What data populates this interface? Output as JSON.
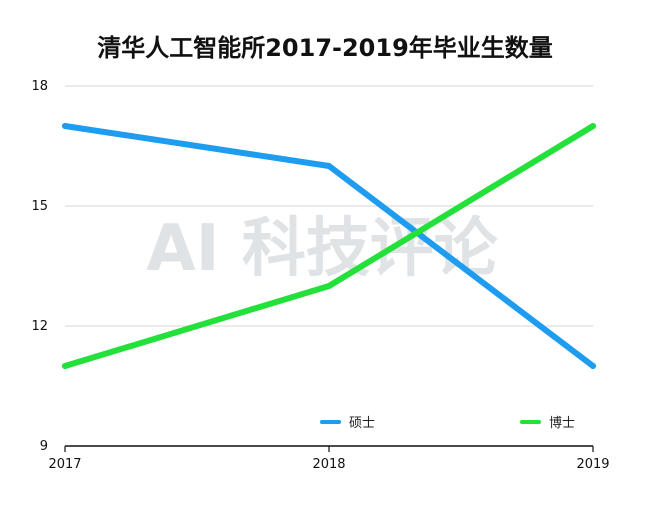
{
  "chart_data": {
    "type": "line",
    "title": "清华人工智能所2017-2019年毕业生数量",
    "x": [
      "2017",
      "2018",
      "2019"
    ],
    "ylim": [
      9,
      18
    ],
    "yticks": [
      "9",
      "12",
      "15",
      "18"
    ],
    "grid": true,
    "legend_position": "bottom-right",
    "series": [
      {
        "name": "硕士",
        "values": [
          17,
          16,
          11
        ],
        "color": "#1e9cf0"
      },
      {
        "name": "博士",
        "values": [
          11,
          13,
          17
        ],
        "color": "#23e03a"
      }
    ]
  },
  "watermark": {
    "text": "AI 科技评论"
  }
}
